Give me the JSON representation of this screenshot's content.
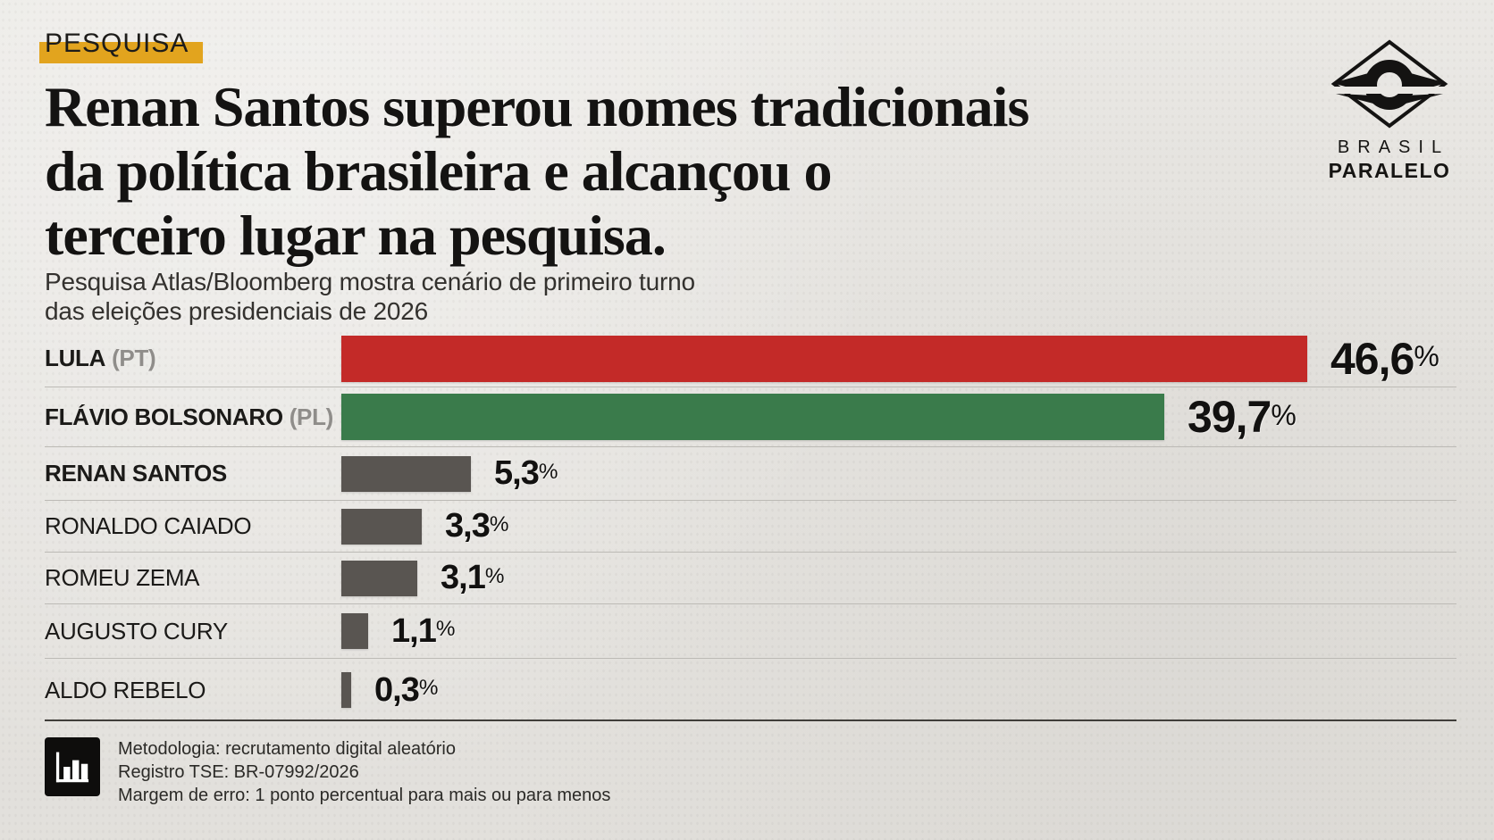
{
  "tag": "PESQUISA",
  "headline": {
    "lines": [
      "Renan Santos superou nomes tradicionais",
      "da política brasileira e alcançou o",
      "terceiro lugar na pesquisa."
    ]
  },
  "subtitle": {
    "lines": [
      "Pesquisa Atlas/Bloomberg mostra cenário de primeiro turno",
      "das eleições presidenciais de 2026"
    ]
  },
  "logo": {
    "line1": "BRASIL",
    "line2": "PARALELO"
  },
  "chart_data": {
    "type": "bar",
    "orientation": "horizontal",
    "unit": "%",
    "decimal_separator": ",",
    "xlim": [
      0,
      46.6
    ],
    "grid": false,
    "legend": "none",
    "categories": [
      "LULA (PT)",
      "FLÁVIO BOLSONARO (PL)",
      "RENAN SANTOS",
      "RONALDO CAIADO",
      "ROMEU ZEMA",
      "AUGUSTO CURY",
      "ALDO REBELO"
    ],
    "values": [
      46.6,
      39.7,
      5.3,
      3.3,
      3.1,
      1.1,
      0.3
    ],
    "rows": [
      {
        "name": "LULA",
        "party": "(PT)",
        "value": 46.6,
        "value_label": "46,6",
        "color": "#c32a28"
      },
      {
        "name": "FLÁVIO BOLSONARO",
        "party": "(PL)",
        "value": 39.7,
        "value_label": "39,7",
        "color": "#3a7b4b"
      },
      {
        "name": "RENAN SANTOS",
        "party": "",
        "value": 5.3,
        "value_label": "5,3",
        "color": "#595551"
      },
      {
        "name": "RONALDO CAIADO",
        "party": "",
        "value": 3.3,
        "value_label": "3,3",
        "color": "#595551"
      },
      {
        "name": "ROMEU ZEMA",
        "party": "",
        "value": 3.1,
        "value_label": "3,1",
        "color": "#595551"
      },
      {
        "name": "AUGUSTO CURY",
        "party": "",
        "value": 1.1,
        "value_label": "1,1",
        "color": "#595551"
      },
      {
        "name": "ALDO REBELO",
        "party": "",
        "value": 0.3,
        "value_label": "0,3",
        "color": "#595551"
      }
    ],
    "accent_colors": {
      "highlight_red": "#c32a28",
      "highlight_green": "#3a7b4b",
      "neutral_gray": "#595551",
      "tag_yellow": "#e2a41e"
    }
  },
  "footer": {
    "icon": "bar-chart-icon",
    "lines": [
      "Metodologia: recrutamento digital aleatório",
      "Registro TSE: BR-07992/2026",
      "Margem de erro: 1 ponto percentual para mais ou para menos"
    ]
  }
}
